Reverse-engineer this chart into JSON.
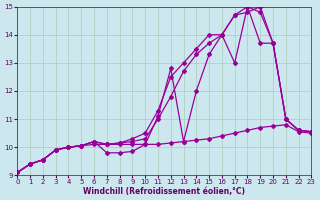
{
  "xlabel": "Windchill (Refroidissement éolien,°C)",
  "background_color": "#cce8ee",
  "grid_color": "#aaccbb",
  "line_color": "#990099",
  "xlim": [
    0,
    23
  ],
  "ylim": [
    9,
    15
  ],
  "xticks": [
    0,
    1,
    2,
    3,
    4,
    5,
    6,
    7,
    8,
    9,
    10,
    11,
    12,
    13,
    14,
    15,
    16,
    17,
    18,
    19,
    20,
    21,
    22,
    23
  ],
  "yticks": [
    9,
    10,
    11,
    12,
    13,
    14,
    15
  ],
  "series": [
    {
      "x": [
        0,
        1,
        2,
        3,
        4,
        5,
        6,
        7,
        8,
        9,
        10,
        11,
        12,
        13,
        14,
        15,
        16,
        17,
        18,
        19,
        20,
        21,
        22,
        23
      ],
      "y": [
        9.1,
        9.4,
        9.55,
        9.9,
        10.0,
        10.05,
        10.1,
        10.1,
        10.1,
        10.1,
        10.1,
        10.1,
        10.15,
        10.2,
        10.25,
        10.3,
        10.4,
        10.5,
        10.6,
        10.7,
        10.75,
        10.8,
        10.55,
        10.5
      ]
    },
    {
      "x": [
        0,
        1,
        2,
        3,
        4,
        5,
        6,
        7,
        8,
        9,
        10,
        11,
        12,
        13,
        14,
        15,
        16,
        17,
        18,
        19,
        20,
        21,
        22,
        23
      ],
      "y": [
        9.1,
        9.4,
        9.55,
        9.9,
        10.0,
        10.05,
        10.2,
        9.8,
        9.8,
        9.85,
        10.1,
        11.1,
        12.8,
        10.2,
        12.0,
        13.3,
        14.0,
        13.0,
        15.0,
        13.7,
        13.7,
        11.0,
        10.6,
        10.55
      ]
    },
    {
      "x": [
        0,
        1,
        2,
        3,
        4,
        5,
        6,
        7,
        8,
        9,
        10,
        11,
        12,
        13,
        14,
        15,
        16,
        17,
        18,
        19,
        20,
        21,
        22,
        23
      ],
      "y": [
        9.1,
        9.4,
        9.55,
        9.9,
        10.0,
        10.05,
        10.2,
        10.1,
        10.15,
        10.2,
        10.3,
        11.0,
        11.8,
        12.7,
        13.3,
        13.7,
        14.0,
        14.7,
        15.0,
        14.8,
        13.7,
        11.0,
        10.6,
        10.55
      ]
    },
    {
      "x": [
        0,
        1,
        2,
        3,
        4,
        5,
        6,
        7,
        8,
        9,
        10,
        11,
        12,
        13,
        14,
        15,
        16,
        17,
        18,
        19,
        20,
        21,
        22,
        23
      ],
      "y": [
        9.1,
        9.4,
        9.55,
        9.9,
        10.0,
        10.05,
        10.2,
        10.1,
        10.15,
        10.3,
        10.5,
        11.3,
        12.5,
        13.0,
        13.5,
        14.0,
        14.0,
        14.7,
        14.8,
        15.0,
        13.7,
        11.0,
        10.6,
        10.55
      ]
    }
  ],
  "marker": "D",
  "marker_size": 2.0,
  "line_width": 0.9,
  "font_color": "#660066",
  "tick_font_size": 5,
  "label_font_size": 5.5,
  "fig_bg": "#cce8ee"
}
